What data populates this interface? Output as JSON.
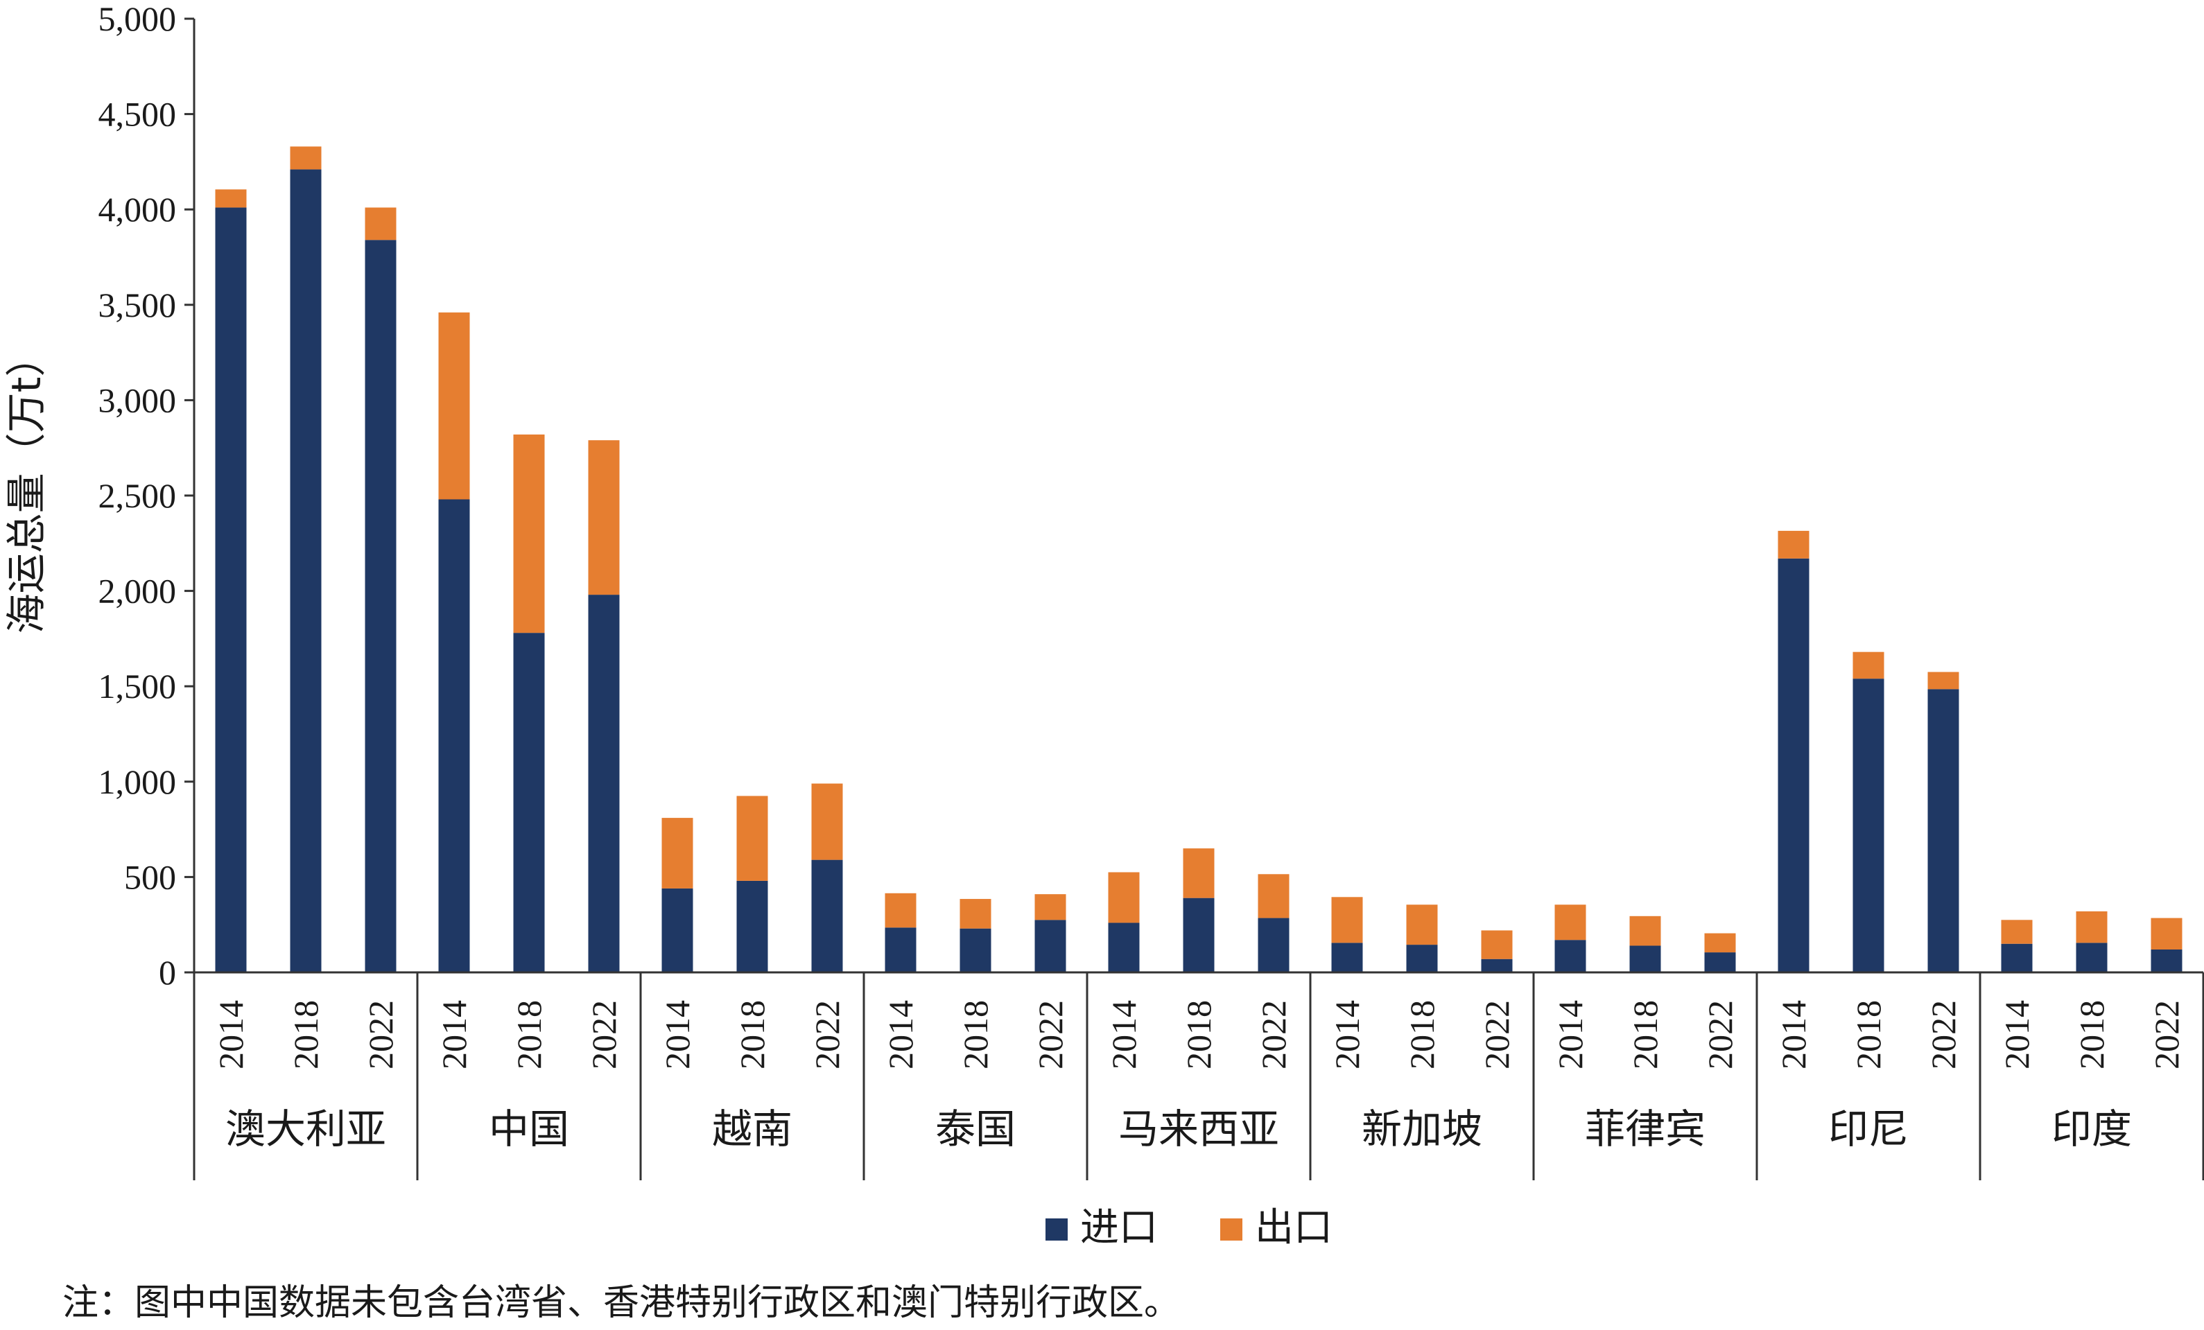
{
  "chart_data": {
    "type": "bar",
    "stacked": true,
    "ylabel": "海运总量（万t）",
    "ylim": [
      0,
      5000
    ],
    "yticks": [
      0,
      500,
      1000,
      1500,
      2000,
      2500,
      3000,
      3500,
      4000,
      4500,
      5000
    ],
    "ytick_labels": [
      "0",
      "500",
      "1,000",
      "1,500",
      "2,000",
      "2,500",
      "3,000",
      "3,500",
      "4,000",
      "4,500",
      "5,000"
    ],
    "groups": [
      "澳大利亚",
      "中国",
      "越南",
      "泰国",
      "马来西亚",
      "新加坡",
      "菲律宾",
      "印尼",
      "印度"
    ],
    "years": [
      "2014",
      "2018",
      "2022"
    ],
    "series": [
      {
        "name": "进口",
        "color": "#1f3864",
        "values": [
          [
            4010,
            4210,
            3840
          ],
          [
            2480,
            1780,
            1980
          ],
          [
            440,
            480,
            590
          ],
          [
            235,
            230,
            275
          ],
          [
            260,
            390,
            285
          ],
          [
            155,
            145,
            70
          ],
          [
            170,
            140,
            105
          ],
          [
            2170,
            1540,
            1485
          ],
          [
            150,
            155,
            120
          ]
        ]
      },
      {
        "name": "出口",
        "color": "#e67e30",
        "values": [
          [
            95,
            120,
            170
          ],
          [
            980,
            1040,
            810
          ],
          [
            370,
            445,
            400
          ],
          [
            180,
            155,
            135
          ],
          [
            265,
            260,
            230
          ],
          [
            240,
            210,
            150
          ],
          [
            185,
            155,
            100
          ],
          [
            145,
            140,
            90
          ],
          [
            125,
            165,
            165
          ]
        ]
      }
    ],
    "legend": [
      "进口",
      "出口"
    ],
    "legend_position": "bottom-center"
  },
  "note": "注：图中中国数据未包含台湾省、香港特别行政区和澳门特别行政区。"
}
